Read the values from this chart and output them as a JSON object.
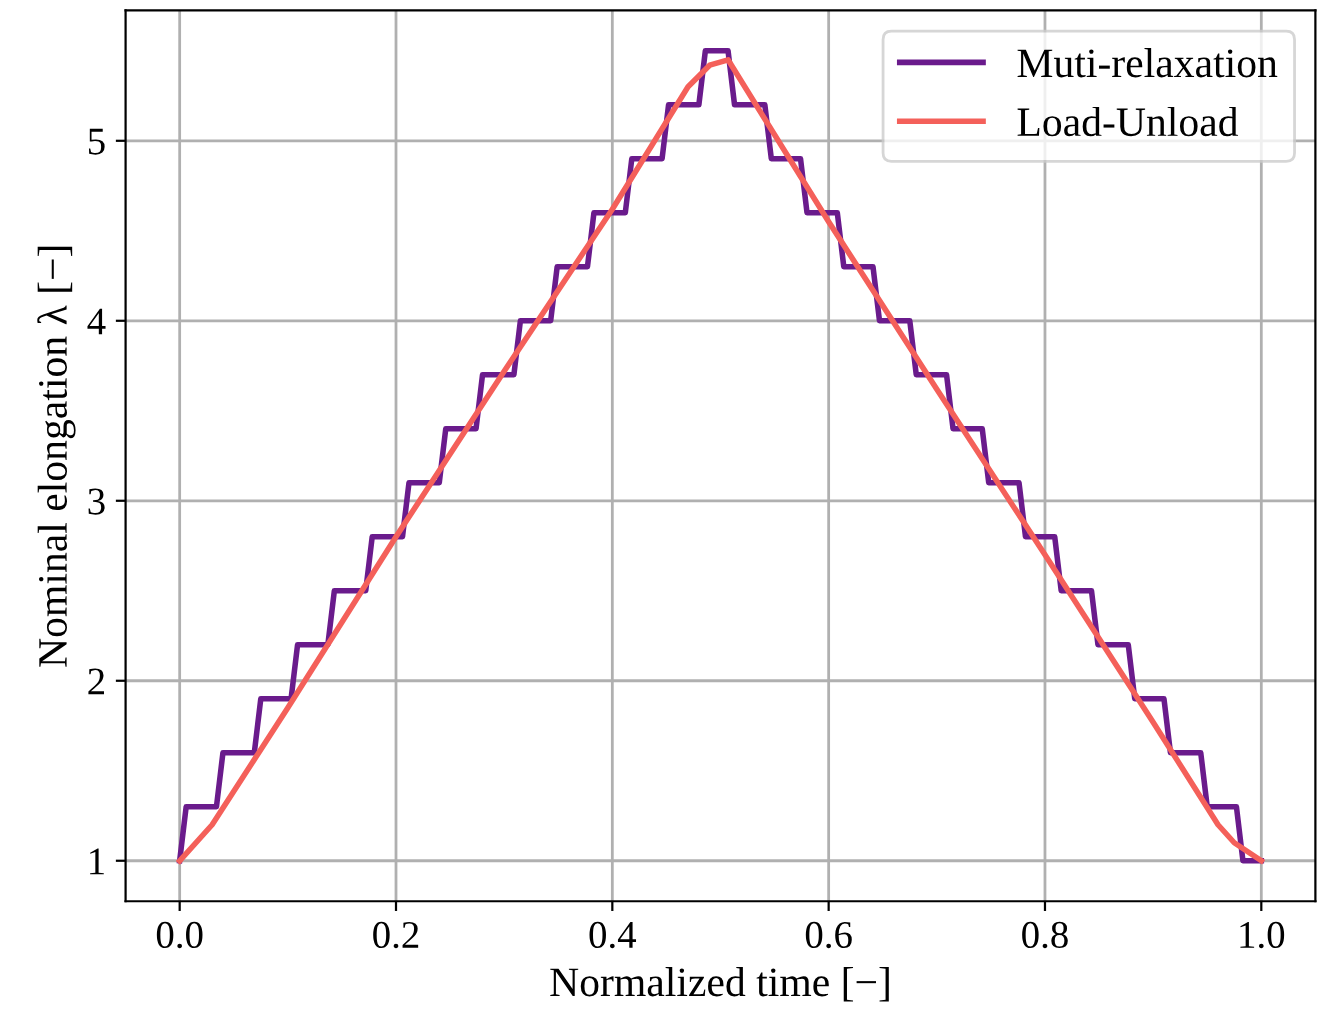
{
  "chart_data": {
    "type": "line",
    "xlabel": "Normalized time [−]",
    "ylabel": "Nominal elongation λ [−]",
    "xlim": [
      -0.05,
      1.05
    ],
    "ylim": [
      0.775,
      5.725
    ],
    "xticks": [
      {
        "value": 0,
        "label": "0.0"
      },
      0.2,
      0.4,
      0.6,
      0.8,
      {
        "value": 1,
        "label": "1.0"
      }
    ],
    "yticks": [
      1,
      2,
      3,
      4,
      5
    ],
    "grid": true,
    "legend": "top right",
    "series": [
      {
        "name": "Muti-relaxation",
        "color": "#6a1b8c",
        "x": [
          0,
          0.006,
          0.034,
          0.04,
          0.069,
          0.075,
          0.103,
          0.109,
          0.137,
          0.143,
          0.172,
          0.178,
          0.206,
          0.212,
          0.24,
          0.246,
          0.274,
          0.28,
          0.309,
          0.315,
          0.343,
          0.349,
          0.377,
          0.383,
          0.412,
          0.418,
          0.446,
          0.452,
          0.48,
          0.486,
          0.507,
          0.513,
          0.541,
          0.547,
          0.574,
          0.58,
          0.608,
          0.614,
          0.641,
          0.647,
          0.675,
          0.681,
          0.709,
          0.715,
          0.742,
          0.748,
          0.776,
          0.782,
          0.809,
          0.815,
          0.843,
          0.849,
          0.877,
          0.883,
          0.91,
          0.916,
          0.944,
          0.95,
          0.977,
          0.983,
          1.0
        ],
        "values": [
          1,
          1.3,
          1.3,
          1.6,
          1.6,
          1.9,
          1.9,
          2.2,
          2.2,
          2.5,
          2.5,
          2.8,
          2.8,
          3.1,
          3.1,
          3.4,
          3.4,
          3.7,
          3.7,
          4.0,
          4.0,
          4.3,
          4.3,
          4.6,
          4.6,
          4.9,
          4.9,
          5.2,
          5.2,
          5.5,
          5.5,
          5.2,
          5.2,
          4.9,
          4.9,
          4.6,
          4.6,
          4.3,
          4.3,
          4.0,
          4.0,
          3.7,
          3.7,
          3.4,
          3.4,
          3.1,
          3.1,
          2.8,
          2.8,
          2.5,
          2.5,
          2.2,
          2.2,
          1.9,
          1.9,
          1.6,
          1.6,
          1.3,
          1.3,
          1.0,
          1.0
        ]
      },
      {
        "name": "Load-Unload",
        "color": "#f4605a",
        "x": [
          0,
          0.03,
          0.1,
          0.2,
          0.3,
          0.4,
          0.47,
          0.49,
          0.507,
          0.6,
          0.7,
          0.8,
          0.9,
          0.96,
          0.975,
          1.0
        ],
        "values": [
          1,
          1.2,
          1.85,
          2.8,
          3.72,
          4.62,
          5.3,
          5.42,
          5.45,
          4.55,
          3.62,
          2.7,
          1.77,
          1.2,
          1.1,
          1.0
        ]
      }
    ]
  }
}
